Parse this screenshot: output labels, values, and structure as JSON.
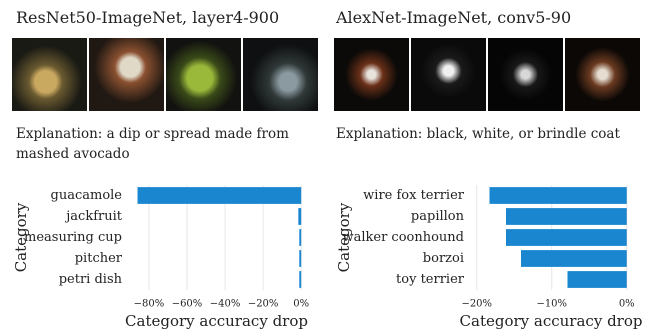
{
  "chart_data": [
    {
      "type": "bar",
      "orientation": "horizontal",
      "title": "ResNet50-ImageNet, layer4-900",
      "subtitle": "Explanation: a dip or spread made from mashed avocado",
      "categories": [
        "guacamole",
        "jackfruit",
        "measuring cup",
        "pitcher",
        "petri dish"
      ],
      "values": [
        -86,
        -1.5,
        -1,
        -1,
        -1
      ],
      "color": "#1b86d0",
      "xlabel": "Category accuracy drop",
      "ylabel": "Category",
      "xlim": [
        -91,
        2
      ],
      "xticks": [
        {
          "value": -80,
          "label": "−80%"
        },
        {
          "value": -60,
          "label": "−60%"
        },
        {
          "value": -40,
          "label": "−40%"
        },
        {
          "value": -20,
          "label": "−20%"
        },
        {
          "value": 0,
          "label": "0%"
        }
      ],
      "grid": true
    },
    {
      "type": "bar",
      "orientation": "horizontal",
      "title": "AlexNet-ImageNet, conv5-90",
      "subtitle": "Explanation: black, white, or brindle coat",
      "categories": [
        "wire fox terrier",
        "papillon",
        "walker coonhound",
        "borzoi",
        "toy terrier"
      ],
      "values": [
        -18.3,
        -16.1,
        -16.1,
        -14.1,
        -7.9
      ],
      "color": "#1b86d0",
      "xlabel": "Category accuracy drop",
      "ylabel": "Category",
      "xlim": [
        -20.9,
        0.7
      ],
      "xticks": [
        {
          "value": -20,
          "label": "−20%"
        },
        {
          "value": -10,
          "label": "−10%"
        },
        {
          "value": 0,
          "label": "0%"
        }
      ],
      "grid": true
    }
  ]
}
